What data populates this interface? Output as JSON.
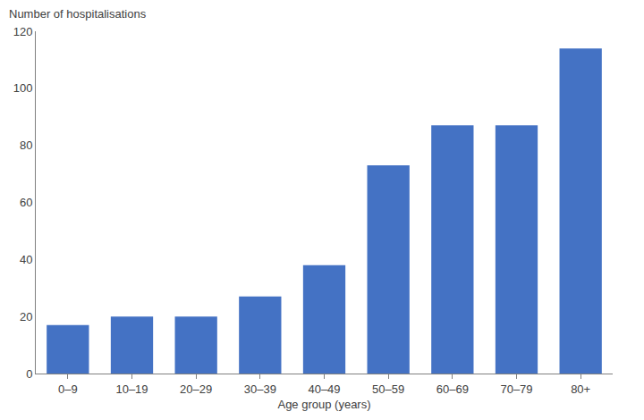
{
  "chart_data": {
    "type": "bar",
    "xlabel": "Age group (years)",
    "ylabel": "Number of hospitalisations",
    "categories": [
      "0–9",
      "10–19",
      "20–29",
      "30–39",
      "40–49",
      "50–59",
      "60–69",
      "70–79",
      "80+"
    ],
    "values": [
      17,
      20,
      20,
      27,
      38,
      73,
      87,
      87,
      114
    ],
    "color": "#4472c4",
    "ylim": [
      0,
      120
    ],
    "yticks": [
      0,
      20,
      40,
      60,
      80,
      100,
      120
    ],
    "grid": false
  }
}
